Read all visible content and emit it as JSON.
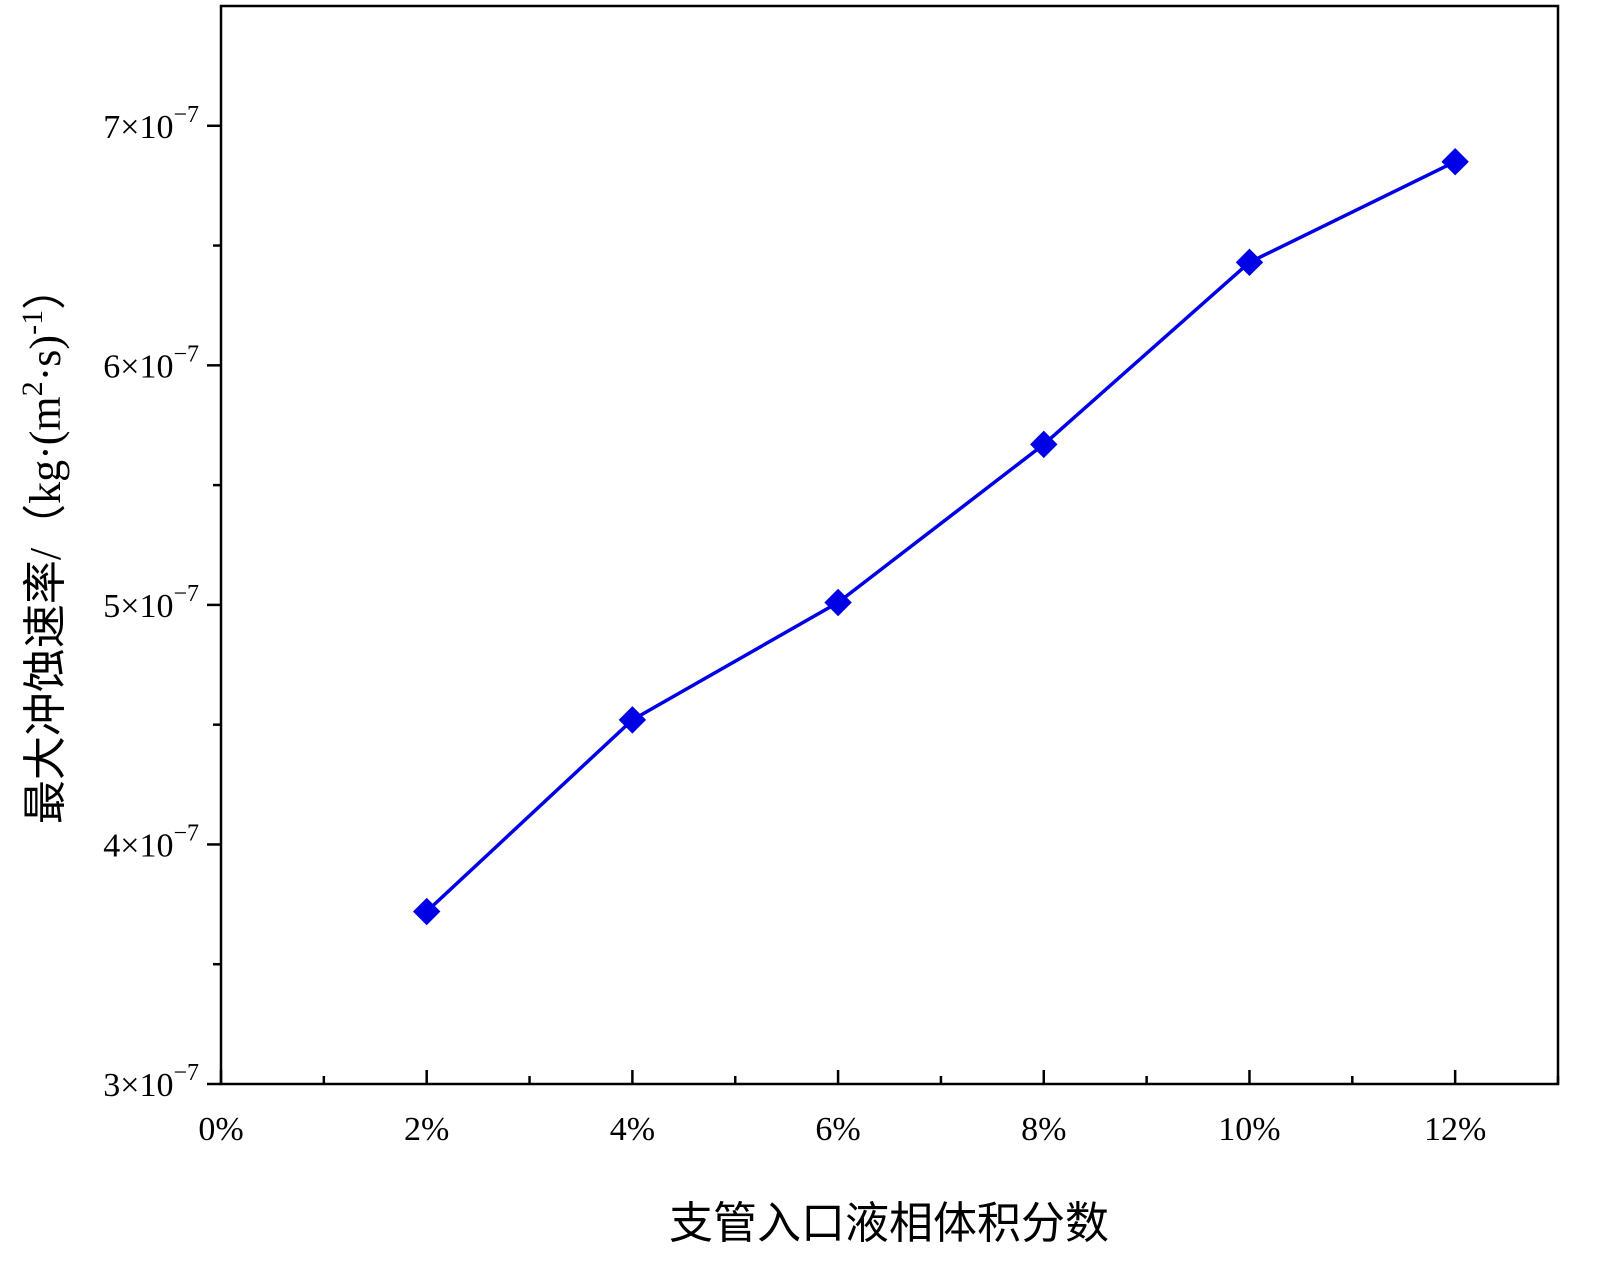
{
  "chart_data": {
    "type": "line",
    "title": "",
    "xlabel": "支管入口液相体积分数",
    "ylabel": "最大冲蚀速率/（kg·(m²·s)⁻¹）",
    "ylabel_parts": {
      "main": "最大冲蚀速率/（kg·(m",
      "sup1": "2",
      "mid": "·s)",
      "sup2": "-1",
      "end": "）"
    },
    "x_unit": "%",
    "xlim": [
      0,
      13
    ],
    "ylim": [
      3e-07,
      7.5e-07
    ],
    "x_major_ticks": [
      0,
      2,
      4,
      6,
      8,
      10,
      12
    ],
    "x_minor_ticks": [
      1,
      3,
      5,
      7,
      9,
      11,
      13
    ],
    "x_tick_labels": [
      "0%",
      "2%",
      "4%",
      "6%",
      "8%",
      "10%",
      "12%"
    ],
    "y_major_ticks": [
      3e-07,
      4e-07,
      5e-07,
      6e-07,
      7e-07
    ],
    "y_minor_ticks": [
      3.5e-07,
      4.5e-07,
      5.5e-07,
      6.5e-07
    ],
    "y_tick_labels": [
      {
        "mantissa": "3×10",
        "exp": "−7"
      },
      {
        "mantissa": "4×10",
        "exp": "−7"
      },
      {
        "mantissa": "5×10",
        "exp": "−7"
      },
      {
        "mantissa": "6×10",
        "exp": "−7"
      },
      {
        "mantissa": "7×10",
        "exp": "−7"
      }
    ],
    "grid": false,
    "legend": "none",
    "series": [
      {
        "color": "#0000e6",
        "marker": "diamond",
        "x": [
          2,
          4,
          6,
          8,
          10,
          12
        ],
        "y": [
          3.72e-07,
          4.52e-07,
          5.01e-07,
          5.67e-07,
          6.43e-07,
          6.85e-07
        ]
      }
    ]
  }
}
